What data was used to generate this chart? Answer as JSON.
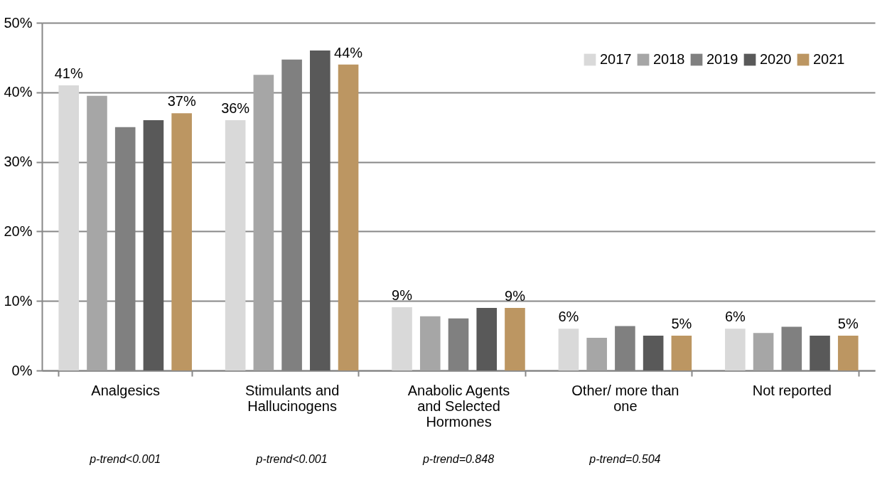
{
  "chart_data": {
    "type": "bar",
    "categories": [
      "Analgesics",
      "Stimulants and Hallucinogens",
      "Anabolic Agents and Selected Hormones",
      "Other/ more than one",
      "Not reported"
    ],
    "series": [
      {
        "name": "2017",
        "color": "#d9d9d9",
        "values": [
          41,
          36,
          9.1,
          6,
          6
        ],
        "value_labels": [
          "41%",
          "36%",
          "9%",
          "6%",
          "6%"
        ]
      },
      {
        "name": "2018",
        "color": "#a6a6a6",
        "values": [
          39.5,
          42.5,
          7.8,
          4.7,
          5.4
        ]
      },
      {
        "name": "2019",
        "color": "#808080",
        "values": [
          35,
          44.7,
          7.5,
          6.4,
          6.3
        ]
      },
      {
        "name": "2020",
        "color": "#595959",
        "values": [
          36,
          46,
          9,
          5,
          5
        ]
      },
      {
        "name": "2021",
        "color": "#bc9662",
        "values": [
          37,
          44,
          9,
          5,
          5
        ],
        "value_labels": [
          "37%",
          "44%",
          "9%",
          "5%",
          "5%"
        ]
      }
    ],
    "ylim": [
      0,
      50
    ],
    "yticks": [
      {
        "value": 0,
        "label": "0%"
      },
      {
        "value": 10,
        "label": "10%"
      },
      {
        "value": 20,
        "label": "20%"
      },
      {
        "value": 30,
        "label": "30%"
      },
      {
        "value": 40,
        "label": "40%"
      },
      {
        "value": 50,
        "label": "50%"
      }
    ],
    "grid": "y",
    "legend": "top right",
    "annotations": [
      "p-trend<0.001",
      "p-trend<0.001",
      "p-trend=0.848",
      "p-trend=0.504"
    ]
  }
}
